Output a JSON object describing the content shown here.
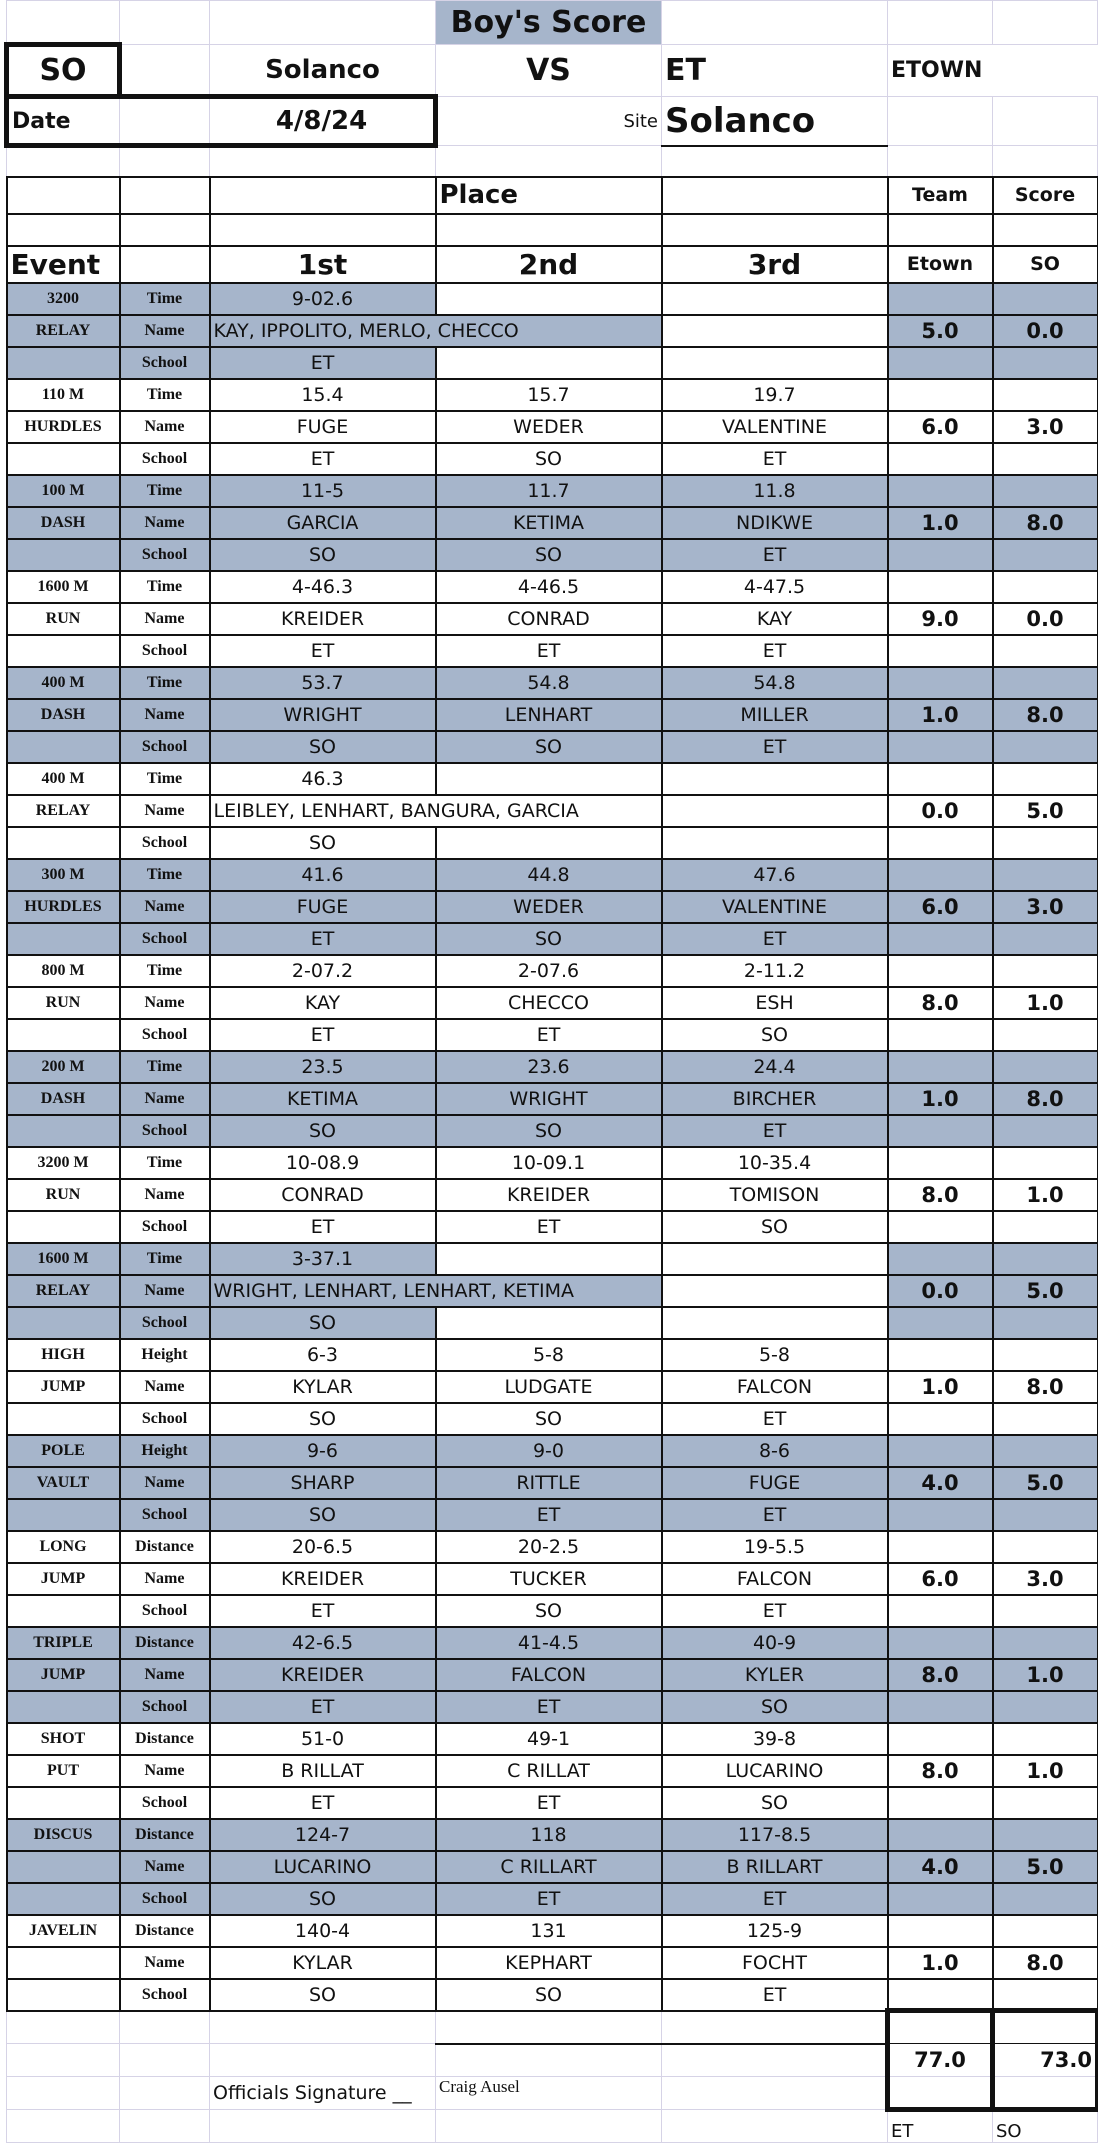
{
  "header": {
    "title": "Boy's Score",
    "home_abbr": "SO",
    "home_name": "Solanco",
    "vs": "VS",
    "away_abbr": "ET",
    "away_name": "ETOWN",
    "date_label": "Date",
    "date": "4/8/24",
    "site_label": "Site",
    "site": "Solanco",
    "place_label": "Place",
    "team_label": "Team",
    "score_label": "Score",
    "event_label": "Event",
    "first": "1st",
    "second": "2nd",
    "third": "3rd",
    "col_away": "Etown",
    "col_home": "SO"
  },
  "row_labels": {
    "name": "Name",
    "school": "School"
  },
  "colors": {
    "shade": "#a6b5cb",
    "grid": "#d6d3e6"
  },
  "events": [
    {
      "l1": "3200",
      "l2": "RELAY",
      "metric": "Time",
      "relay": true,
      "marks": [
        "9-02.6"
      ],
      "names": [
        "KAY, IPPOLITO, MERLO, CHECCO"
      ],
      "schools": [
        "ET"
      ],
      "et": "5.0",
      "so": "0.0"
    },
    {
      "l1": "110 M",
      "l2": "HURDLES",
      "metric": "Time",
      "marks": [
        "15.4",
        "15.7",
        "19.7"
      ],
      "names": [
        "FUGE",
        "WEDER",
        "VALENTINE"
      ],
      "schools": [
        "ET",
        "SO",
        "ET"
      ],
      "et": "6.0",
      "so": "3.0"
    },
    {
      "l1": "100 M",
      "l2": "DASH",
      "metric": "Time",
      "marks": [
        "11-5",
        "11.7",
        "11.8"
      ],
      "names": [
        "GARCIA",
        "KETIMA",
        "NDIKWE"
      ],
      "schools": [
        "SO",
        "SO",
        "ET"
      ],
      "et": "1.0",
      "so": "8.0"
    },
    {
      "l1": "1600 M",
      "l2": "RUN",
      "metric": "Time",
      "marks": [
        "4-46.3",
        "4-46.5",
        "4-47.5"
      ],
      "names": [
        "KREIDER",
        "CONRAD",
        "KAY"
      ],
      "schools": [
        "ET",
        "ET",
        "ET"
      ],
      "et": "9.0",
      "so": "0.0"
    },
    {
      "l1": "400 M",
      "l2": "DASH",
      "metric": "Time",
      "marks": [
        "53.7",
        "54.8",
        "54.8"
      ],
      "names": [
        "WRIGHT",
        "LENHART",
        "MILLER"
      ],
      "schools": [
        "SO",
        "SO",
        "ET"
      ],
      "et": "1.0",
      "so": "8.0"
    },
    {
      "l1": "400 M",
      "l2": "RELAY",
      "metric": "Time",
      "relay": true,
      "marks": [
        "46.3"
      ],
      "names": [
        "LEIBLEY, LENHART, BANGURA, GARCIA"
      ],
      "schools": [
        "SO"
      ],
      "et": "0.0",
      "so": "5.0"
    },
    {
      "l1": "300 M",
      "l2": "HURDLES",
      "metric": "Time",
      "marks": [
        "41.6",
        "44.8",
        "47.6"
      ],
      "names": [
        "FUGE",
        "WEDER",
        "VALENTINE"
      ],
      "schools": [
        "ET",
        "SO",
        "ET"
      ],
      "et": "6.0",
      "so": "3.0"
    },
    {
      "l1": "800 M",
      "l2": "RUN",
      "metric": "Time",
      "marks": [
        "2-07.2",
        "2-07.6",
        "2-11.2"
      ],
      "names": [
        "KAY",
        "CHECCO",
        "ESH"
      ],
      "schools": [
        "ET",
        "ET",
        "SO"
      ],
      "et": "8.0",
      "so": "1.0"
    },
    {
      "l1": "200 M",
      "l2": "DASH",
      "metric": "Time",
      "marks": [
        "23.5",
        "23.6",
        "24.4"
      ],
      "names": [
        "KETIMA",
        "WRIGHT",
        "BIRCHER"
      ],
      "schools": [
        "SO",
        "SO",
        "ET"
      ],
      "et": "1.0",
      "so": "8.0"
    },
    {
      "l1": "3200 M",
      "l2": "RUN",
      "metric": "Time",
      "marks": [
        "10-08.9",
        "10-09.1",
        "10-35.4"
      ],
      "names": [
        "CONRAD",
        "KREIDER",
        "TOMISON"
      ],
      "schools": [
        "ET",
        "ET",
        "SO"
      ],
      "et": "8.0",
      "so": "1.0"
    },
    {
      "l1": "1600 M",
      "l2": "RELAY",
      "metric": "Time",
      "relay": true,
      "marks": [
        "3-37.1"
      ],
      "names": [
        "WRIGHT, LENHART, LENHART, KETIMA"
      ],
      "schools": [
        "SO"
      ],
      "et": "0.0",
      "so": "5.0"
    },
    {
      "l1": "HIGH",
      "l2": "JUMP",
      "metric": "Height",
      "marks": [
        "6-3",
        "5-8",
        "5-8"
      ],
      "names": [
        "KYLAR",
        "LUDGATE",
        "FALCON"
      ],
      "schools": [
        "SO",
        "SO",
        "ET"
      ],
      "et": "1.0",
      "so": "8.0"
    },
    {
      "l1": "POLE",
      "l2": "VAULT",
      "metric": "Height",
      "marks": [
        "9-6",
        "9-0",
        "8-6"
      ],
      "names": [
        "SHARP",
        "RITTLE",
        "FUGE"
      ],
      "schools": [
        "SO",
        "ET",
        "ET"
      ],
      "et": "4.0",
      "so": "5.0"
    },
    {
      "l1": "LONG",
      "l2": "JUMP",
      "metric": "Distance",
      "marks": [
        "20-6.5",
        "20-2.5",
        "19-5.5"
      ],
      "names": [
        "KREIDER",
        "TUCKER",
        "FALCON"
      ],
      "schools": [
        "ET",
        "SO",
        "ET"
      ],
      "et": "6.0",
      "so": "3.0"
    },
    {
      "l1": "TRIPLE",
      "l2": "JUMP",
      "metric": "Distance",
      "marks": [
        "42-6.5",
        "41-4.5",
        "40-9"
      ],
      "names": [
        "KREIDER",
        "FALCON",
        "KYLER"
      ],
      "schools": [
        "ET",
        "ET",
        "SO"
      ],
      "et": "8.0",
      "so": "1.0"
    },
    {
      "l1": "SHOT",
      "l2": "PUT",
      "metric": "Distance",
      "marks": [
        "51-0",
        "49-1",
        "39-8"
      ],
      "names": [
        "B RILLAT",
        "C RILLAT",
        "LUCARINO"
      ],
      "schools": [
        "ET",
        "ET",
        "SO"
      ],
      "et": "8.0",
      "so": "1.0"
    },
    {
      "l1": "DISCUS",
      "l2": "",
      "metric": "Distance",
      "marks": [
        "124-7",
        "118",
        "117-8.5"
      ],
      "names": [
        "LUCARINO",
        "C RILLART",
        "B RILLART"
      ],
      "schools": [
        "SO",
        "ET",
        "ET"
      ],
      "et": "4.0",
      "so": "5.0"
    },
    {
      "l1": "JAVELIN",
      "l2": "",
      "metric": "Distance",
      "marks": [
        "140-4",
        "131",
        "125-9"
      ],
      "names": [
        "KYLAR",
        "KEPHART",
        "FOCHT"
      ],
      "schools": [
        "SO",
        "SO",
        "ET"
      ],
      "et": "1.0",
      "so": "8.0"
    }
  ],
  "footer": {
    "total_et": "77.0",
    "total_so": "73.0",
    "signature_label": "Officials Signature __",
    "signature": "Craig Ausel",
    "total_et_label": "ET",
    "total_so_label": "SO"
  }
}
